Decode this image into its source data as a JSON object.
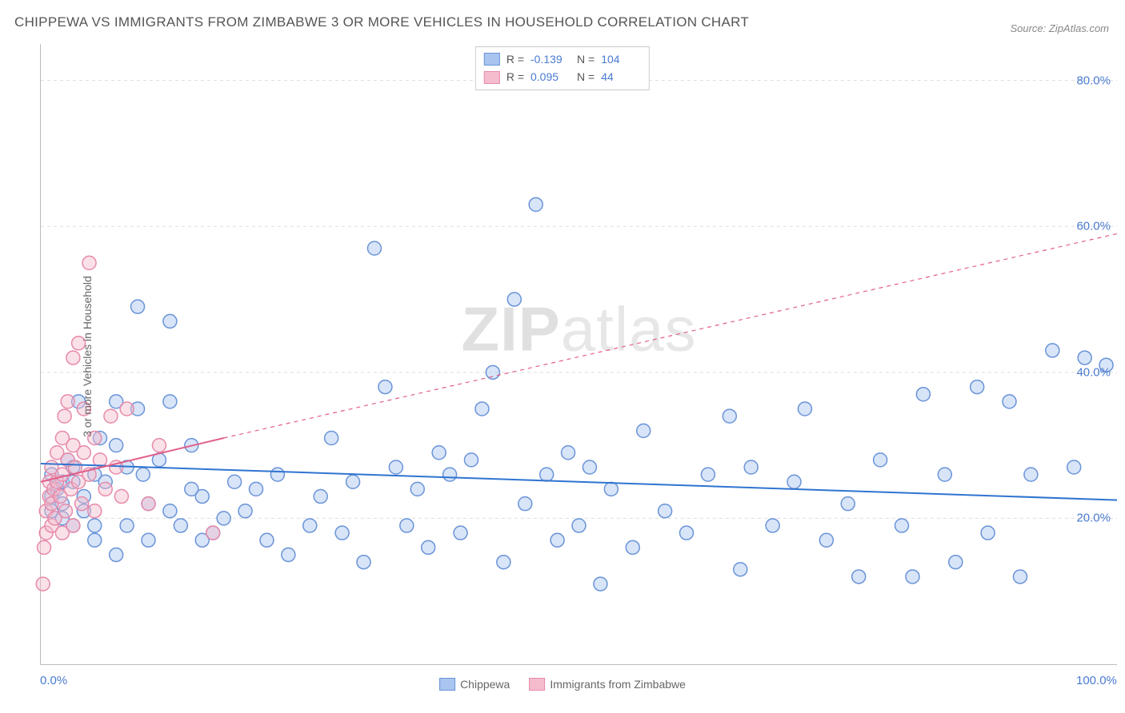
{
  "title": "CHIPPEWA VS IMMIGRANTS FROM ZIMBABWE 3 OR MORE VEHICLES IN HOUSEHOLD CORRELATION CHART",
  "source": "Source: ZipAtlas.com",
  "ylabel": "3 or more Vehicles in Household",
  "watermark_bold": "ZIP",
  "watermark_rest": "atlas",
  "chart": {
    "type": "scatter",
    "background_color": "#ffffff",
    "grid_color": "#dddddd",
    "grid_style": "dashed",
    "axis_color": "#bbbbbb",
    "tick_color": "#4a7bd0",
    "tick_fontsize": 15,
    "label_fontsize": 14,
    "title_fontsize": 17,
    "title_color": "#555555",
    "xlim": [
      0,
      100
    ],
    "ylim": [
      0,
      85
    ],
    "ytick_values": [
      20,
      40,
      60,
      80
    ],
    "ytick_labels": [
      "20.0%",
      "40.0%",
      "60.0%",
      "80.0%"
    ],
    "xtick_values": [
      0,
      100
    ],
    "xtick_labels": [
      "0.0%",
      "100.0%"
    ],
    "marker_radius": 8.5,
    "marker_fill_opacity": 0.45,
    "marker_stroke_width": 1.5,
    "line_width": 2
  },
  "series": [
    {
      "name": "Chippewa",
      "color_fill": "#a9c4ef",
      "color_stroke": "#6a94d8",
      "line_color": "#2f74d0",
      "R": "-0.139",
      "N": "104",
      "trend": {
        "x1": 0,
        "y1": 27.5,
        "x2": 100,
        "y2": 22.5,
        "dash": "none"
      },
      "points": [
        [
          1,
          23
        ],
        [
          1,
          26
        ],
        [
          1,
          21
        ],
        [
          1.5,
          24
        ],
        [
          2,
          22
        ],
        [
          2,
          25
        ],
        [
          2,
          20
        ],
        [
          2.5,
          28
        ],
        [
          3,
          27
        ],
        [
          3,
          19
        ],
        [
          3,
          25
        ],
        [
          3.5,
          36
        ],
        [
          4,
          23
        ],
        [
          4,
          21
        ],
        [
          5,
          17
        ],
        [
          5,
          19
        ],
        [
          5,
          26
        ],
        [
          5.5,
          31
        ],
        [
          6,
          25
        ],
        [
          7,
          30
        ],
        [
          7,
          15
        ],
        [
          7,
          36
        ],
        [
          8,
          27
        ],
        [
          8,
          19
        ],
        [
          9,
          49
        ],
        [
          9,
          35
        ],
        [
          9.5,
          26
        ],
        [
          10,
          17
        ],
        [
          10,
          22
        ],
        [
          11,
          28
        ],
        [
          12,
          21
        ],
        [
          12,
          36
        ],
        [
          12,
          47
        ],
        [
          13,
          19
        ],
        [
          14,
          24
        ],
        [
          14,
          30
        ],
        [
          15,
          17
        ],
        [
          15,
          23
        ],
        [
          16,
          18
        ],
        [
          17,
          20
        ],
        [
          18,
          25
        ],
        [
          19,
          21
        ],
        [
          20,
          24
        ],
        [
          21,
          17
        ],
        [
          22,
          26
        ],
        [
          23,
          15
        ],
        [
          25,
          19
        ],
        [
          26,
          23
        ],
        [
          27,
          31
        ],
        [
          28,
          18
        ],
        [
          29,
          25
        ],
        [
          30,
          14
        ],
        [
          31,
          57
        ],
        [
          32,
          38
        ],
        [
          33,
          27
        ],
        [
          34,
          19
        ],
        [
          35,
          24
        ],
        [
          36,
          16
        ],
        [
          37,
          29
        ],
        [
          38,
          26
        ],
        [
          39,
          18
        ],
        [
          40,
          28
        ],
        [
          41,
          35
        ],
        [
          42,
          40
        ],
        [
          43,
          14
        ],
        [
          44,
          50
        ],
        [
          45,
          22
        ],
        [
          46,
          63
        ],
        [
          47,
          26
        ],
        [
          48,
          17
        ],
        [
          49,
          29
        ],
        [
          50,
          19
        ],
        [
          51,
          27
        ],
        [
          52,
          11
        ],
        [
          53,
          24
        ],
        [
          55,
          16
        ],
        [
          56,
          32
        ],
        [
          58,
          21
        ],
        [
          60,
          18
        ],
        [
          62,
          26
        ],
        [
          64,
          34
        ],
        [
          65,
          13
        ],
        [
          66,
          27
        ],
        [
          68,
          19
        ],
        [
          70,
          25
        ],
        [
          71,
          35
        ],
        [
          73,
          17
        ],
        [
          75,
          22
        ],
        [
          76,
          12
        ],
        [
          78,
          28
        ],
        [
          80,
          19
        ],
        [
          81,
          12
        ],
        [
          82,
          37
        ],
        [
          84,
          26
        ],
        [
          85,
          14
        ],
        [
          87,
          38
        ],
        [
          88,
          18
        ],
        [
          90,
          36
        ],
        [
          91,
          12
        ],
        [
          92,
          26
        ],
        [
          94,
          43
        ],
        [
          96,
          27
        ],
        [
          97,
          42
        ],
        [
          99,
          41
        ]
      ]
    },
    {
      "name": "Immigrants from Zimbabwe",
      "color_fill": "#f5bccd",
      "color_stroke": "#e78aa9",
      "line_color": "#e15f8a",
      "R": "0.095",
      "N": "44",
      "trend_solid": {
        "x1": 0,
        "y1": 25,
        "x2": 17,
        "y2": 31
      },
      "trend_dash": {
        "x1": 17,
        "y1": 31,
        "x2": 100,
        "y2": 59,
        "dash": "5,5"
      },
      "points": [
        [
          0.2,
          11
        ],
        [
          0.3,
          16
        ],
        [
          0.5,
          18
        ],
        [
          0.5,
          21
        ],
        [
          0.8,
          23
        ],
        [
          0.8,
          25
        ],
        [
          1,
          19
        ],
        [
          1,
          22
        ],
        [
          1,
          27
        ],
        [
          1.2,
          24
        ],
        [
          1.3,
          20
        ],
        [
          1.5,
          25
        ],
        [
          1.5,
          29
        ],
        [
          1.8,
          23
        ],
        [
          2,
          18
        ],
        [
          2,
          26
        ],
        [
          2,
          31
        ],
        [
          2.2,
          34
        ],
        [
          2.3,
          21
        ],
        [
          2.5,
          28
        ],
        [
          2.5,
          36
        ],
        [
          2.8,
          24
        ],
        [
          3,
          19
        ],
        [
          3,
          30
        ],
        [
          3,
          42
        ],
        [
          3.2,
          27
        ],
        [
          3.5,
          25
        ],
        [
          3.5,
          44
        ],
        [
          3.8,
          22
        ],
        [
          4,
          29
        ],
        [
          4,
          35
        ],
        [
          4.5,
          26
        ],
        [
          4.5,
          55
        ],
        [
          5,
          21
        ],
        [
          5,
          31
        ],
        [
          5.5,
          28
        ],
        [
          6,
          24
        ],
        [
          6.5,
          34
        ],
        [
          7,
          27
        ],
        [
          7.5,
          23
        ],
        [
          8,
          35
        ],
        [
          10,
          22
        ],
        [
          11,
          30
        ],
        [
          16,
          18
        ]
      ]
    }
  ],
  "stats_legend": {
    "label_R": "R =",
    "label_N": "N ="
  },
  "bottom_legend": [
    {
      "label": "Chippewa",
      "fill": "#a9c4ef",
      "stroke": "#6a94d8"
    },
    {
      "label": "Immigrants from Zimbabwe",
      "fill": "#f5bccd",
      "stroke": "#e78aa9"
    }
  ]
}
